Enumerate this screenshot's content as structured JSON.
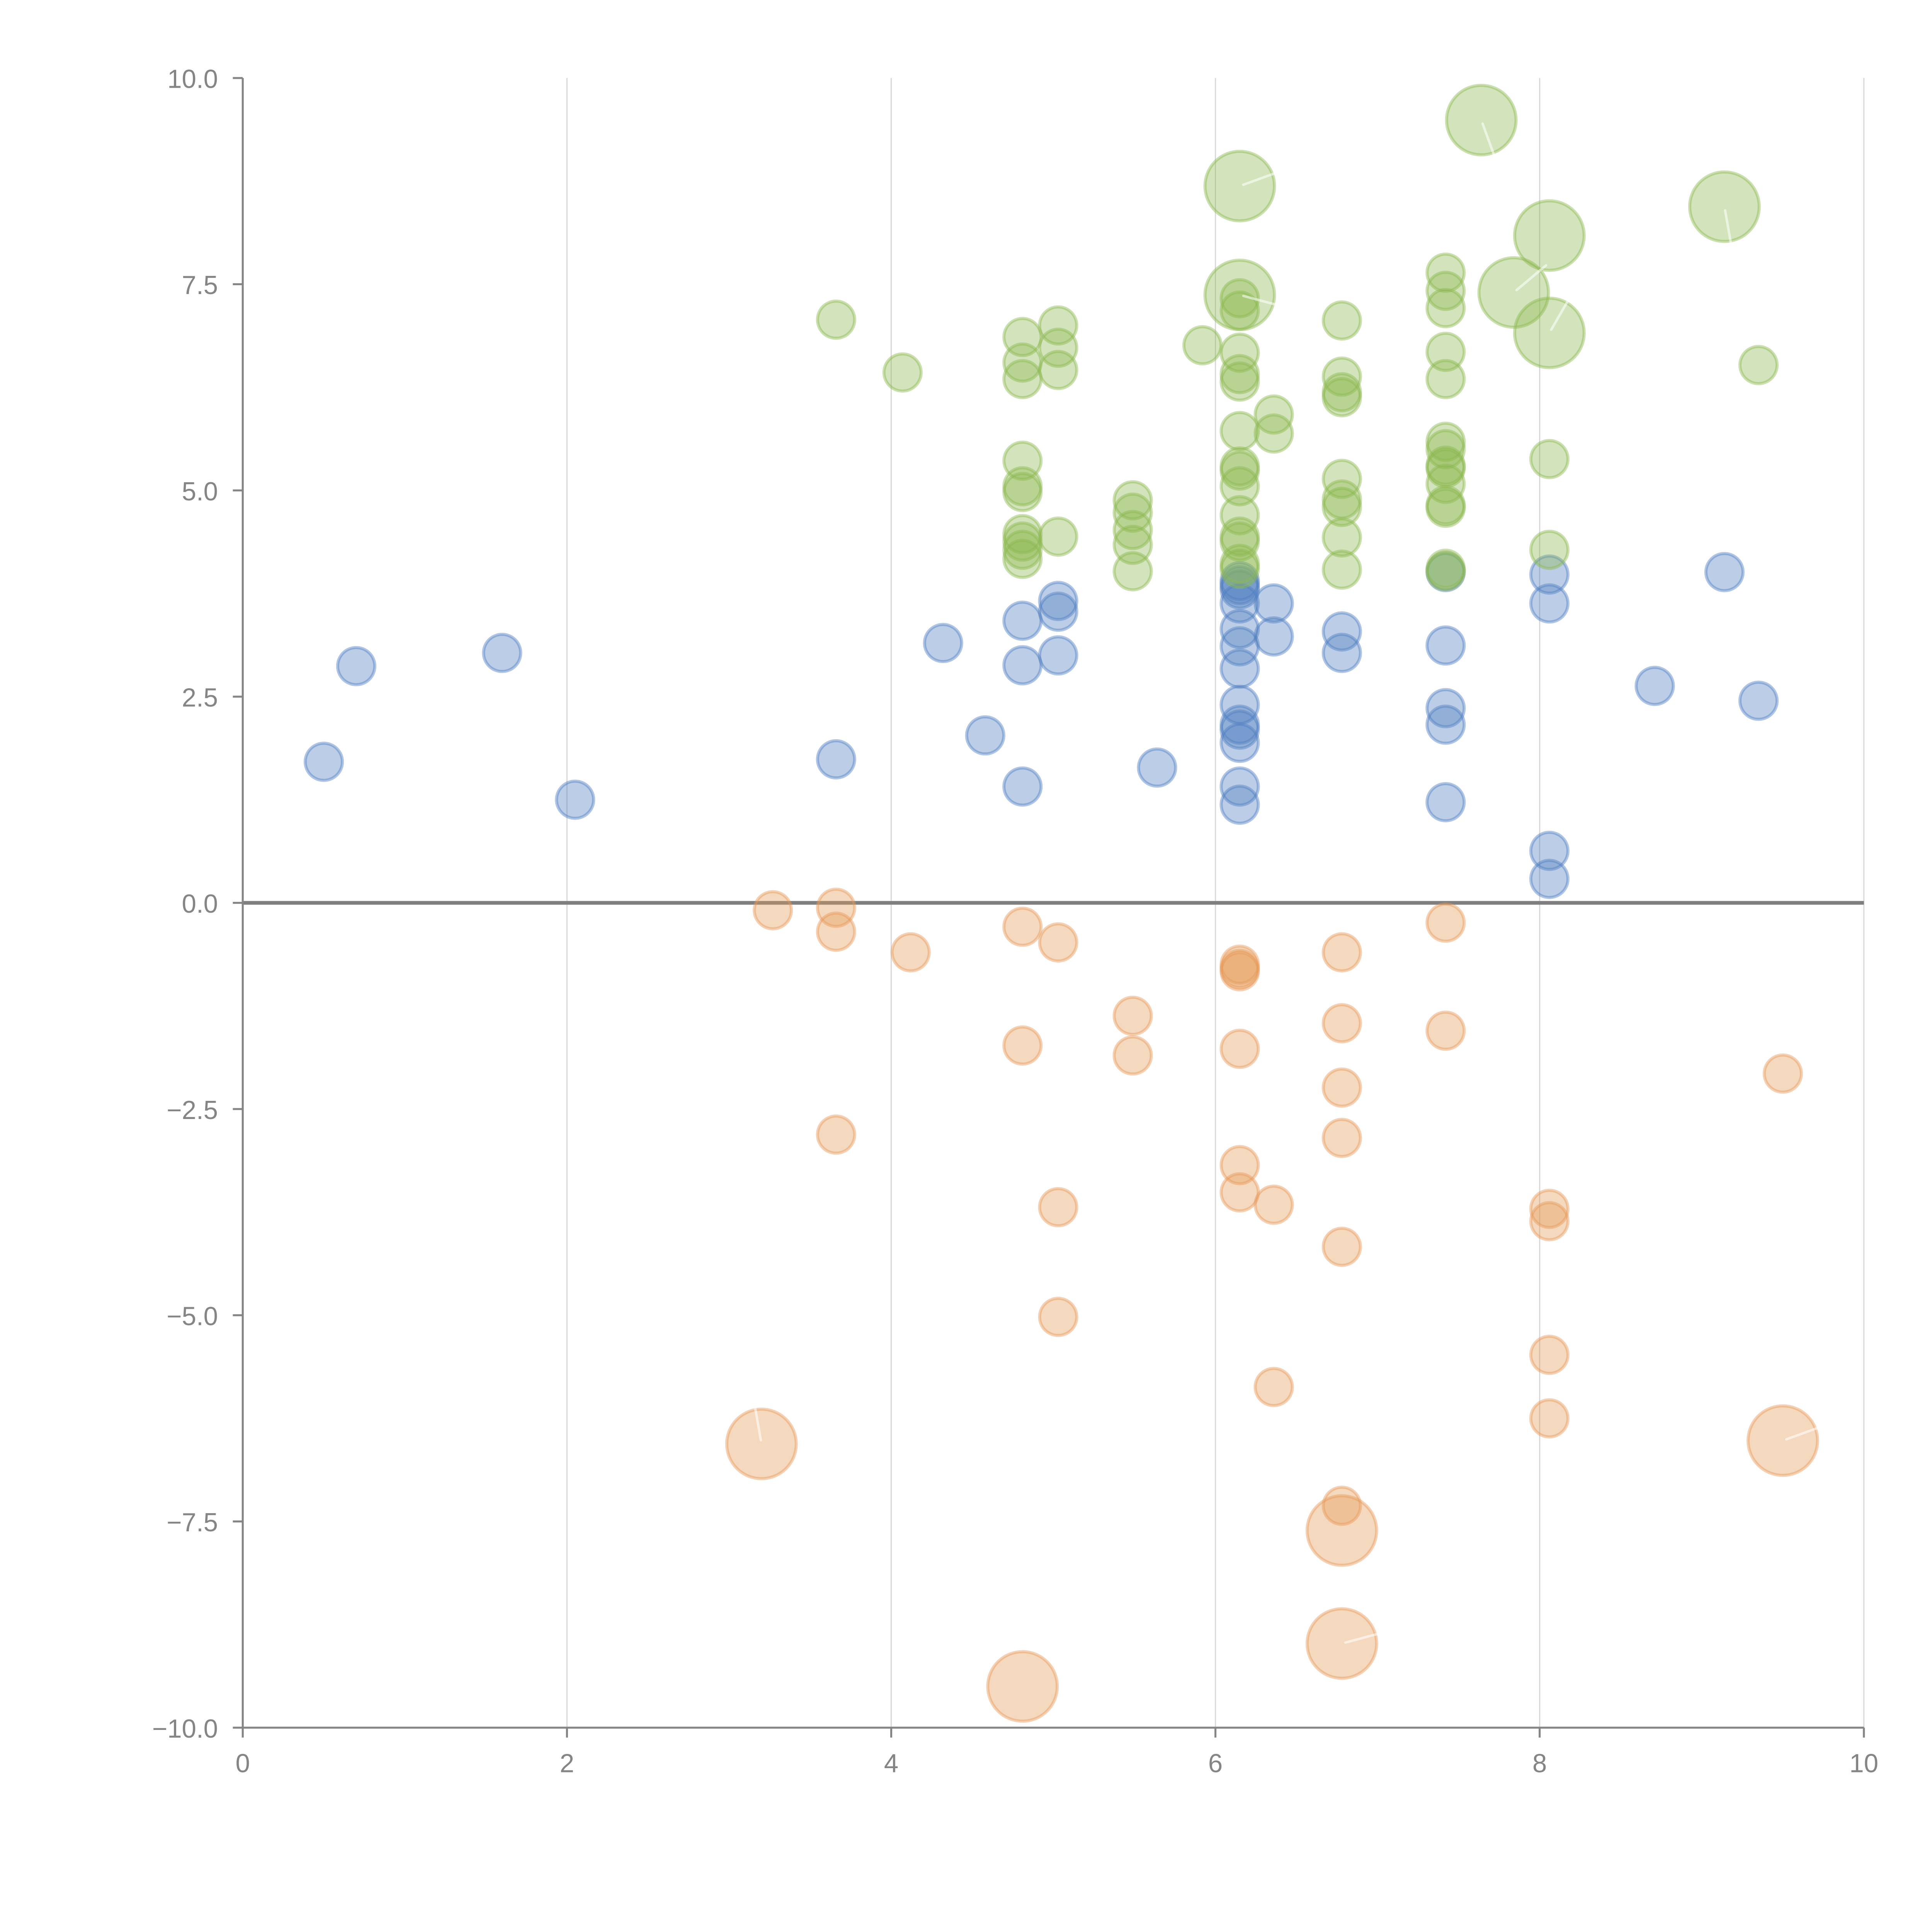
{
  "chart_data": {
    "type": "scatter",
    "subtype": "bubble",
    "title": "",
    "xlabel": "",
    "ylabel": "",
    "xlim": [
      0,
      10
    ],
    "ylim": [
      -10,
      10
    ],
    "x_ticks": [
      0,
      2,
      4,
      6,
      8,
      10
    ],
    "x_tick_labels": [
      "0",
      "2",
      "4",
      "6",
      "8",
      "10"
    ],
    "y_ticks": [
      -10,
      -7.5,
      -5,
      -2.5,
      0,
      2.5,
      5,
      7.5,
      10
    ],
    "y_tick_labels": [
      "−10.0",
      "−7.5",
      "−5.0",
      "−2.5",
      "0.0",
      "2.5",
      "5.0",
      "7.5",
      "10.0"
    ],
    "grid": {
      "x": true,
      "y": false
    },
    "zero_line": true,
    "legend": "none",
    "series": [
      {
        "name": "blue",
        "color": "#4f7fc1",
        "points": [
          {
            "x": 0.5,
            "y": 1.71,
            "size": 1
          },
          {
            "x": 0.7,
            "y": 2.87,
            "size": 1
          },
          {
            "x": 1.6,
            "y": 3.03,
            "size": 1
          },
          {
            "x": 2.05,
            "y": 1.25,
            "size": 1
          },
          {
            "x": 3.66,
            "y": 1.74,
            "size": 1
          },
          {
            "x": 4.32,
            "y": 3.15,
            "size": 1
          },
          {
            "x": 4.58,
            "y": 2.03,
            "size": 1
          },
          {
            "x": 4.81,
            "y": 3.42,
            "size": 1
          },
          {
            "x": 4.81,
            "y": 2.88,
            "size": 1
          },
          {
            "x": 4.81,
            "y": 1.41,
            "size": 1
          },
          {
            "x": 5.03,
            "y": 3.66,
            "size": 1
          },
          {
            "x": 5.03,
            "y": 3.53,
            "size": 1
          },
          {
            "x": 5.03,
            "y": 3.0,
            "size": 1
          },
          {
            "x": 5.64,
            "y": 1.64,
            "size": 1
          },
          {
            "x": 6.15,
            "y": 3.9,
            "size": 1
          },
          {
            "x": 6.15,
            "y": 3.85,
            "size": 1
          },
          {
            "x": 6.15,
            "y": 3.8,
            "size": 1
          },
          {
            "x": 6.15,
            "y": 3.63,
            "size": 1
          },
          {
            "x": 6.15,
            "y": 3.32,
            "size": 1
          },
          {
            "x": 6.15,
            "y": 3.11,
            "size": 1
          },
          {
            "x": 6.15,
            "y": 2.84,
            "size": 1
          },
          {
            "x": 6.15,
            "y": 2.4,
            "size": 1
          },
          {
            "x": 6.15,
            "y": 2.16,
            "size": 1
          },
          {
            "x": 6.15,
            "y": 2.1,
            "size": 1
          },
          {
            "x": 6.15,
            "y": 1.94,
            "size": 1
          },
          {
            "x": 6.15,
            "y": 1.41,
            "size": 1
          },
          {
            "x": 6.15,
            "y": 1.19,
            "size": 1
          },
          {
            "x": 6.36,
            "y": 3.63,
            "size": 1
          },
          {
            "x": 6.36,
            "y": 3.23,
            "size": 1
          },
          {
            "x": 6.78,
            "y": 3.29,
            "size": 1
          },
          {
            "x": 6.78,
            "y": 3.03,
            "size": 1
          },
          {
            "x": 7.42,
            "y": 4.01,
            "size": 1
          },
          {
            "x": 7.42,
            "y": 3.12,
            "size": 1
          },
          {
            "x": 7.42,
            "y": 2.36,
            "size": 1
          },
          {
            "x": 7.42,
            "y": 2.16,
            "size": 1
          },
          {
            "x": 7.42,
            "y": 1.22,
            "size": 1
          },
          {
            "x": 8.06,
            "y": 3.98,
            "size": 1
          },
          {
            "x": 8.06,
            "y": 3.63,
            "size": 1
          },
          {
            "x": 8.06,
            "y": 0.63,
            "size": 1
          },
          {
            "x": 8.06,
            "y": 0.29,
            "size": 1
          },
          {
            "x": 8.71,
            "y": 2.63,
            "size": 1
          },
          {
            "x": 9.14,
            "y": 4.01,
            "size": 1
          },
          {
            "x": 9.35,
            "y": 2.45,
            "size": 1
          }
        ]
      },
      {
        "name": "green",
        "color": "#8cb84f",
        "points": [
          {
            "x": 3.66,
            "y": 7.07,
            "size": 1
          },
          {
            "x": 4.07,
            "y": 6.43,
            "size": 1
          },
          {
            "x": 4.81,
            "y": 6.86,
            "size": 1
          },
          {
            "x": 4.81,
            "y": 6.55,
            "size": 1
          },
          {
            "x": 4.81,
            "y": 6.35,
            "size": 1
          },
          {
            "x": 4.81,
            "y": 5.36,
            "size": 1
          },
          {
            "x": 4.81,
            "y": 5.05,
            "size": 1
          },
          {
            "x": 4.81,
            "y": 4.98,
            "size": 1
          },
          {
            "x": 4.81,
            "y": 4.47,
            "size": 1
          },
          {
            "x": 4.81,
            "y": 4.38,
            "size": 1
          },
          {
            "x": 4.81,
            "y": 4.28,
            "size": 1
          },
          {
            "x": 4.81,
            "y": 4.17,
            "size": 1
          },
          {
            "x": 5.03,
            "y": 7.0,
            "size": 1
          },
          {
            "x": 5.03,
            "y": 6.73,
            "size": 1
          },
          {
            "x": 5.03,
            "y": 6.46,
            "size": 1
          },
          {
            "x": 5.03,
            "y": 4.44,
            "size": 1
          },
          {
            "x": 5.49,
            "y": 4.88,
            "size": 1
          },
          {
            "x": 5.49,
            "y": 4.73,
            "size": 1
          },
          {
            "x": 5.49,
            "y": 4.52,
            "size": 1
          },
          {
            "x": 5.49,
            "y": 4.34,
            "size": 1
          },
          {
            "x": 5.49,
            "y": 4.02,
            "size": 1
          },
          {
            "x": 5.92,
            "y": 6.76,
            "size": 1
          },
          {
            "x": 6.15,
            "y": 8.69,
            "size": 3.5,
            "leader": true
          },
          {
            "x": 6.15,
            "y": 7.37,
            "size": 3.5,
            "leader": true
          },
          {
            "x": 6.15,
            "y": 7.33,
            "size": 1
          },
          {
            "x": 6.15,
            "y": 7.18,
            "size": 1
          },
          {
            "x": 6.15,
            "y": 6.67,
            "size": 1
          },
          {
            "x": 6.15,
            "y": 6.41,
            "size": 1
          },
          {
            "x": 6.15,
            "y": 6.32,
            "size": 1
          },
          {
            "x": 6.15,
            "y": 5.72,
            "size": 1
          },
          {
            "x": 6.15,
            "y": 5.29,
            "size": 1
          },
          {
            "x": 6.15,
            "y": 5.24,
            "size": 1
          },
          {
            "x": 6.15,
            "y": 5.05,
            "size": 1
          },
          {
            "x": 6.15,
            "y": 4.7,
            "size": 1
          },
          {
            "x": 6.15,
            "y": 4.44,
            "size": 1
          },
          {
            "x": 6.15,
            "y": 4.38,
            "size": 1
          },
          {
            "x": 6.15,
            "y": 4.11,
            "size": 1
          },
          {
            "x": 6.15,
            "y": 4.05,
            "size": 1
          },
          {
            "x": 6.36,
            "y": 5.92,
            "size": 1
          },
          {
            "x": 6.36,
            "y": 5.69,
            "size": 1
          },
          {
            "x": 6.78,
            "y": 7.06,
            "size": 1
          },
          {
            "x": 6.78,
            "y": 6.38,
            "size": 1
          },
          {
            "x": 6.78,
            "y": 6.19,
            "size": 1
          },
          {
            "x": 6.78,
            "y": 6.13,
            "size": 1
          },
          {
            "x": 6.78,
            "y": 5.14,
            "size": 1
          },
          {
            "x": 6.78,
            "y": 4.89,
            "size": 1
          },
          {
            "x": 6.78,
            "y": 4.8,
            "size": 1
          },
          {
            "x": 6.78,
            "y": 4.43,
            "size": 1
          },
          {
            "x": 6.78,
            "y": 4.04,
            "size": 1
          },
          {
            "x": 7.42,
            "y": 7.64,
            "size": 1
          },
          {
            "x": 7.42,
            "y": 7.42,
            "size": 1
          },
          {
            "x": 7.42,
            "y": 7.21,
            "size": 1
          },
          {
            "x": 7.42,
            "y": 6.68,
            "size": 1
          },
          {
            "x": 7.42,
            "y": 6.35,
            "size": 1
          },
          {
            "x": 7.42,
            "y": 5.59,
            "size": 1
          },
          {
            "x": 7.42,
            "y": 5.5,
            "size": 1
          },
          {
            "x": 7.42,
            "y": 5.3,
            "size": 1
          },
          {
            "x": 7.42,
            "y": 5.27,
            "size": 1
          },
          {
            "x": 7.42,
            "y": 5.08,
            "size": 1
          },
          {
            "x": 7.42,
            "y": 4.82,
            "size": 1
          },
          {
            "x": 7.42,
            "y": 4.79,
            "size": 1
          },
          {
            "x": 7.42,
            "y": 4.05,
            "size": 1
          },
          {
            "x": 7.42,
            "y": 4.02,
            "size": 1
          },
          {
            "x": 7.64,
            "y": 9.49,
            "size": 3.5,
            "leader": true
          },
          {
            "x": 7.84,
            "y": 7.4,
            "size": 3.5,
            "leader": true
          },
          {
            "x": 8.06,
            "y": 8.09,
            "size": 3.5
          },
          {
            "x": 8.06,
            "y": 6.91,
            "size": 3.5,
            "leader": true
          },
          {
            "x": 8.06,
            "y": 5.38,
            "size": 1
          },
          {
            "x": 8.06,
            "y": 4.28,
            "size": 1
          },
          {
            "x": 9.14,
            "y": 8.44,
            "size": 3.5,
            "leader": true
          },
          {
            "x": 9.35,
            "y": 6.52,
            "size": 1
          }
        ]
      },
      {
        "name": "orange",
        "color": "#e69a58",
        "points": [
          {
            "x": 3.27,
            "y": -0.09,
            "size": 1
          },
          {
            "x": 3.66,
            "y": -0.06,
            "size": 1
          },
          {
            "x": 3.66,
            "y": -0.35,
            "size": 1
          },
          {
            "x": 3.66,
            "y": -2.81,
            "size": 1
          },
          {
            "x": 4.12,
            "y": -0.6,
            "size": 1
          },
          {
            "x": 4.81,
            "y": -0.29,
            "size": 1
          },
          {
            "x": 4.81,
            "y": -1.73,
            "size": 1
          },
          {
            "x": 5.03,
            "y": -0.48,
            "size": 1
          },
          {
            "x": 5.03,
            "y": -3.69,
            "size": 1
          },
          {
            "x": 5.03,
            "y": -5.02,
            "size": 1
          },
          {
            "x": 5.49,
            "y": -1.37,
            "size": 1
          },
          {
            "x": 5.49,
            "y": -1.85,
            "size": 1
          },
          {
            "x": 6.15,
            "y": -0.75,
            "size": 1
          },
          {
            "x": 6.15,
            "y": -0.8,
            "size": 1
          },
          {
            "x": 6.15,
            "y": -0.83,
            "size": 1
          },
          {
            "x": 6.15,
            "y": -1.77,
            "size": 1
          },
          {
            "x": 6.15,
            "y": -3.18,
            "size": 1
          },
          {
            "x": 6.15,
            "y": -3.51,
            "size": 1
          },
          {
            "x": 6.36,
            "y": -3.66,
            "size": 1
          },
          {
            "x": 6.36,
            "y": -5.87,
            "size": 1
          },
          {
            "x": 6.78,
            "y": -0.6,
            "size": 1
          },
          {
            "x": 6.78,
            "y": -1.46,
            "size": 1
          },
          {
            "x": 6.78,
            "y": -2.24,
            "size": 1
          },
          {
            "x": 6.78,
            "y": -2.85,
            "size": 1
          },
          {
            "x": 6.78,
            "y": -4.17,
            "size": 1
          },
          {
            "x": 6.78,
            "y": -7.31,
            "size": 1
          },
          {
            "x": 7.42,
            "y": -0.24,
            "size": 1
          },
          {
            "x": 7.42,
            "y": -1.55,
            "size": 1
          },
          {
            "x": 8.06,
            "y": -3.71,
            "size": 1
          },
          {
            "x": 8.06,
            "y": -3.86,
            "size": 1
          },
          {
            "x": 8.06,
            "y": -5.48,
            "size": 1
          },
          {
            "x": 8.06,
            "y": -6.25,
            "size": 1
          },
          {
            "x": 9.5,
            "y": -2.07,
            "size": 1
          },
          {
            "x": 3.2,
            "y": -6.56,
            "size": 3.5,
            "leader": true
          },
          {
            "x": 4.81,
            "y": -9.5,
            "size": 3.5
          },
          {
            "x": 6.78,
            "y": -7.61,
            "size": 3.5
          },
          {
            "x": 6.78,
            "y": -8.98,
            "size": 3.5,
            "leader": true
          },
          {
            "x": 9.5,
            "y": -6.52,
            "size": 3.5,
            "leader": true
          }
        ]
      }
    ]
  }
}
